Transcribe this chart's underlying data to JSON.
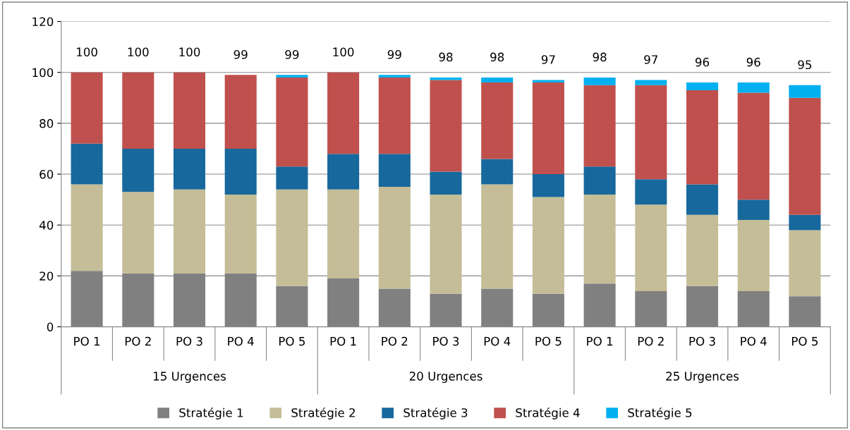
{
  "chart_data": {
    "type": "bar",
    "stacked": true,
    "categories": [
      "PO 1",
      "PO 2",
      "PO 3",
      "PO 4",
      "PO 5",
      "PO 1",
      "PO 2",
      "PO 3",
      "PO 4",
      "PO 5",
      "PO 1",
      "PO 2",
      "PO 3",
      "PO 4",
      "PO 5"
    ],
    "annotations": [
      "15 Urgences",
      "20 Urgences",
      "25 Urgences"
    ],
    "series": [
      {
        "name": "Stratégie 1",
        "color": "#808080",
        "values": [
          22,
          21,
          21,
          21,
          16,
          19,
          15,
          13,
          15,
          13,
          17,
          14,
          16,
          14,
          12
        ]
      },
      {
        "name": "Stratégie 2",
        "color": "#c4bd97",
        "values": [
          34,
          32,
          33,
          31,
          38,
          35,
          40,
          39,
          41,
          38,
          35,
          34,
          28,
          28,
          26
        ]
      },
      {
        "name": "Stratégie 3",
        "color": "#17689c",
        "values": [
          16,
          17,
          16,
          18,
          9,
          14,
          13,
          9,
          10,
          9,
          11,
          10,
          12,
          8,
          6
        ]
      },
      {
        "name": "Stratégie 4",
        "color": "#c0504d",
        "values": [
          28,
          30,
          30,
          29,
          35,
          32,
          30,
          36,
          30,
          36,
          32,
          37,
          37,
          42,
          46
        ]
      },
      {
        "name": "Stratégie 5",
        "color": "#00b0f0",
        "values": [
          0,
          0,
          0,
          0,
          1,
          0,
          1,
          1,
          2,
          1,
          3,
          2,
          3,
          4,
          5
        ]
      }
    ],
    "totals": [
      "100",
      "100",
      "100",
      "99",
      "99",
      "100",
      "99",
      "98",
      "98",
      "97",
      "98",
      "97",
      "96",
      "96",
      "95"
    ],
    "ylim": [
      0,
      120
    ],
    "yticks": [
      0,
      20,
      40,
      60,
      80,
      100,
      120
    ],
    "grid": "y",
    "legend": "bottom"
  }
}
